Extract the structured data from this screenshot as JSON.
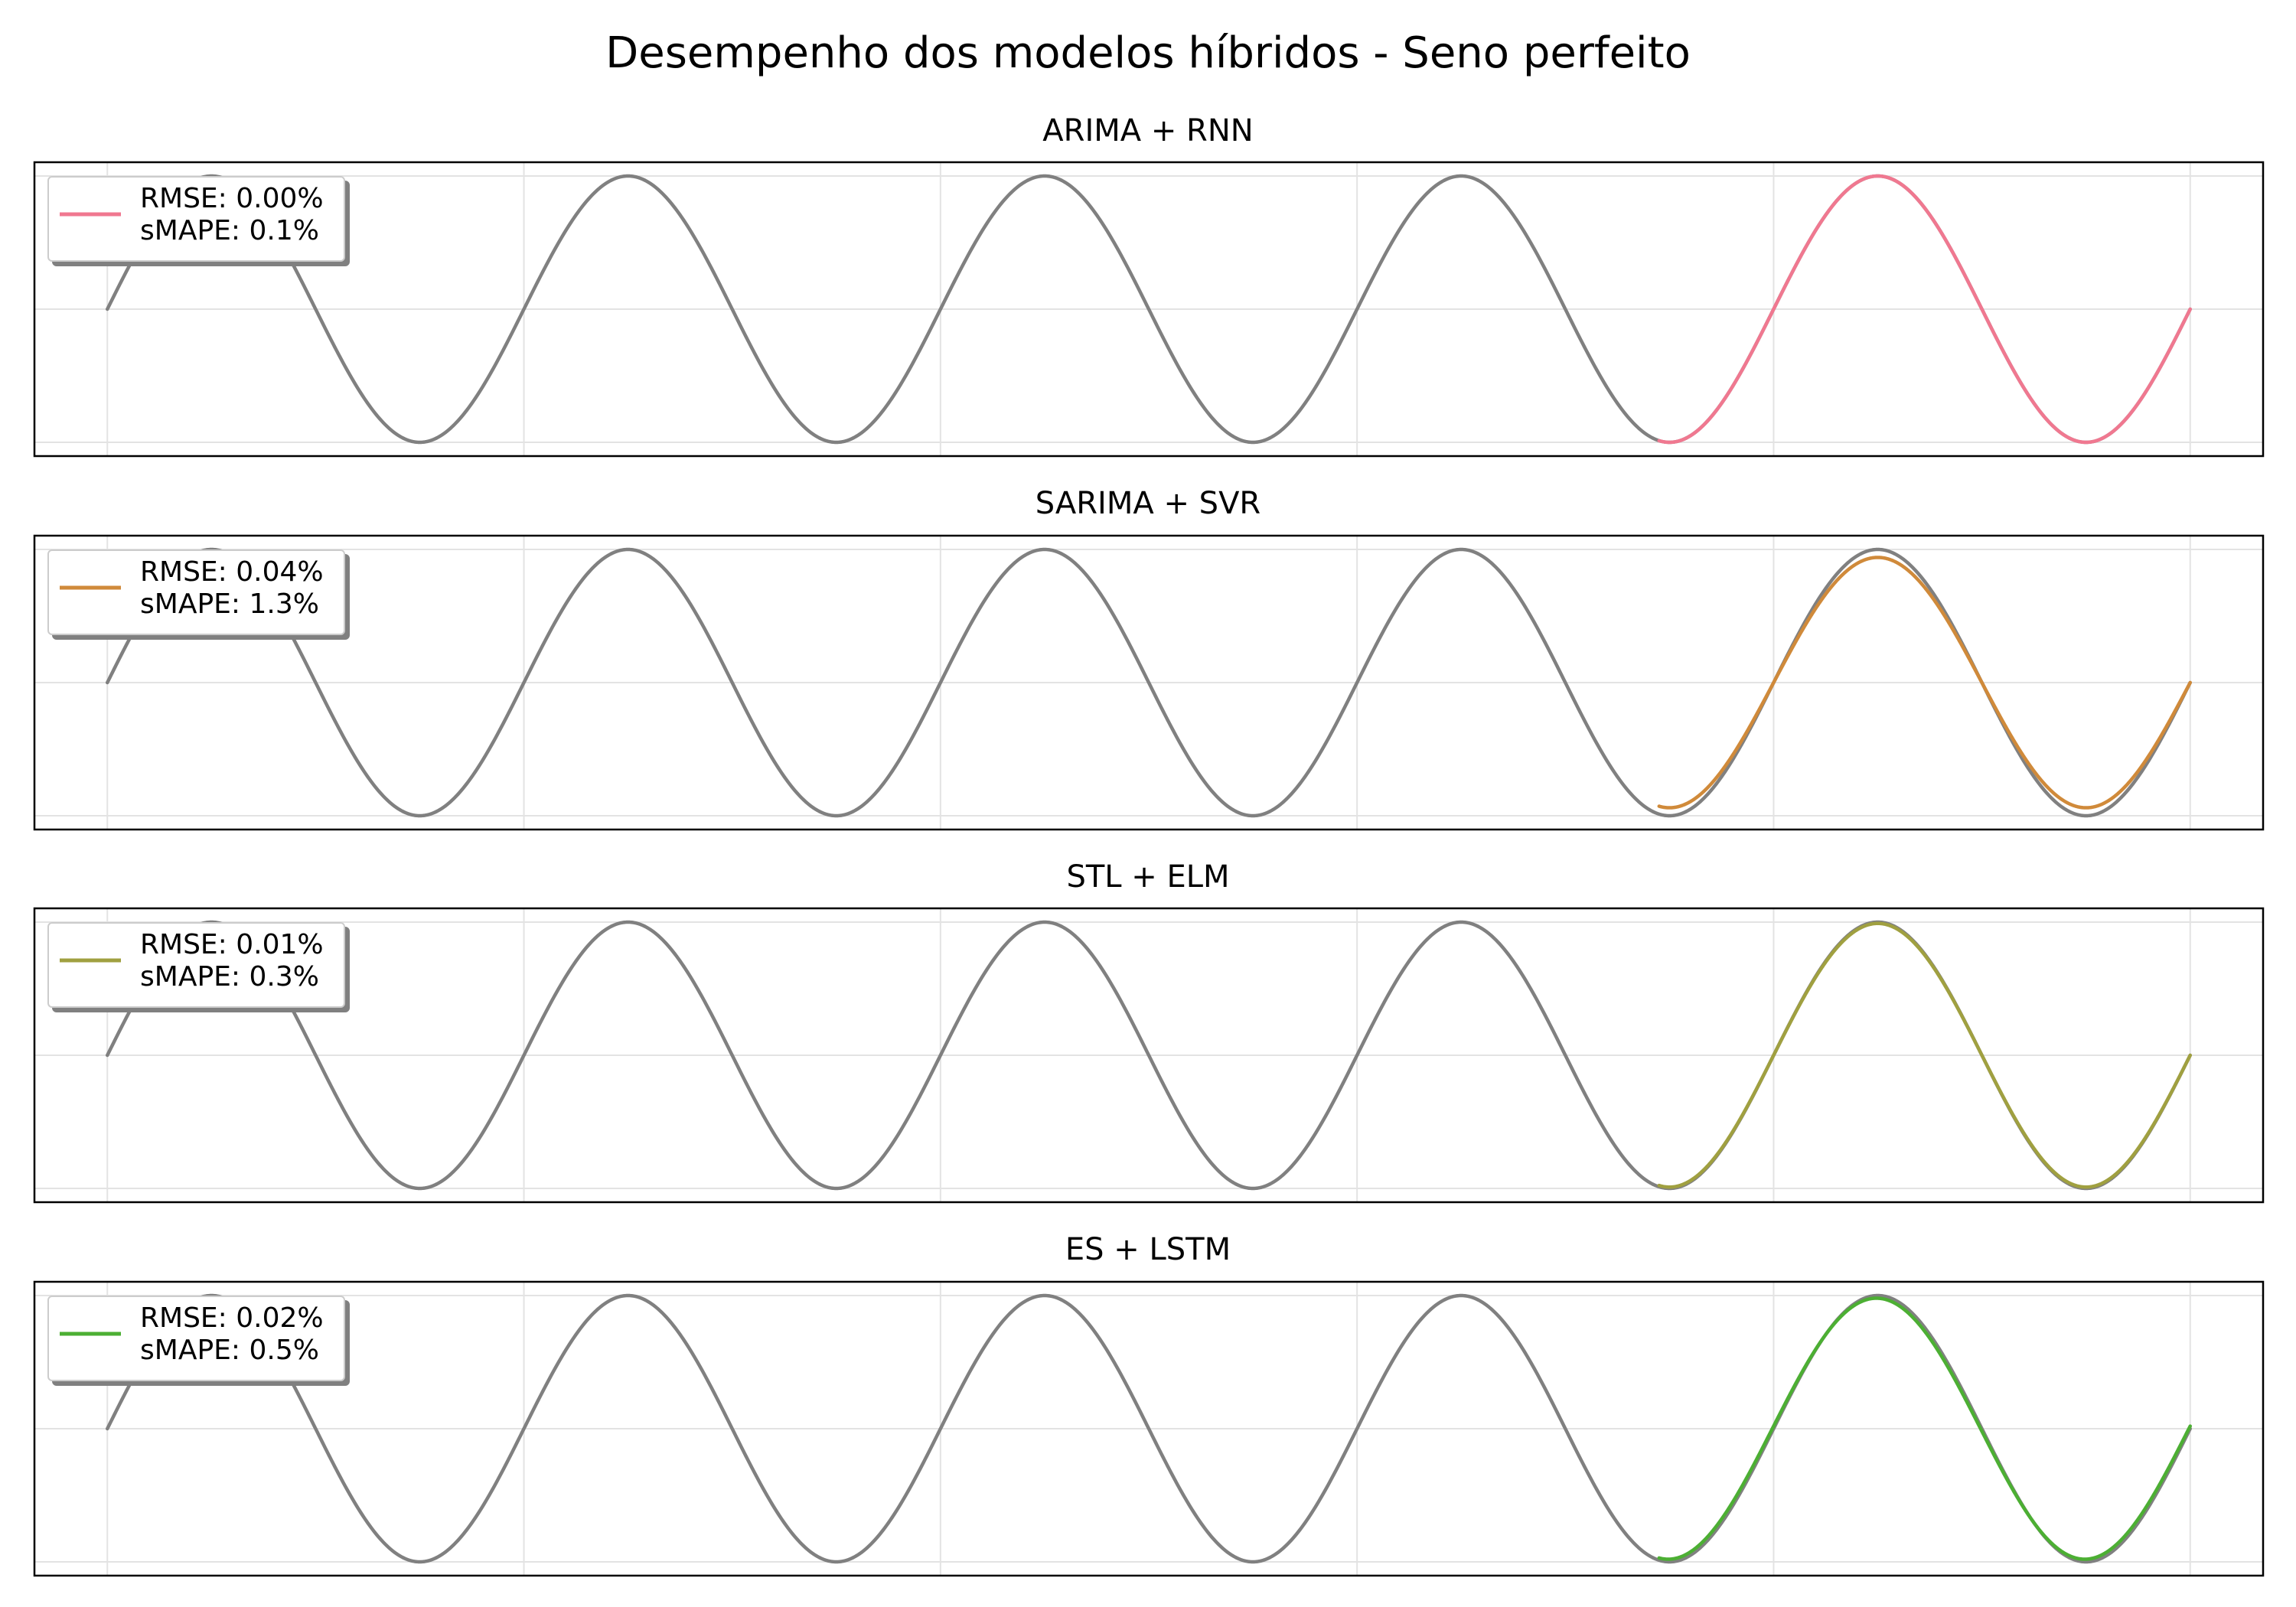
{
  "title": "Desempenho dos modelos híbridos - Seno perfeito",
  "chart_data": [
    {
      "type": "line",
      "title": "ARIMA + RNN",
      "xlabel": "",
      "ylabel": "",
      "grid": true,
      "legend": {
        "placement": "top-left",
        "lines": [
          "RMSE: 0.00%",
          "sMAPE: 0.1%"
        ]
      },
      "series": [
        {
          "role": "actual",
          "color": "#808080",
          "x_start": 0,
          "x_end": 100,
          "period": 20,
          "amplitude": 1,
          "phase": 0
        },
        {
          "role": "forecast",
          "color": "#f07890",
          "x_start": 74.5,
          "x_end": 100,
          "period": 20,
          "amplitude": 1.0,
          "phase": 0
        }
      ],
      "metrics": {
        "RMSE": "0.00%",
        "sMAPE": "0.1%"
      }
    },
    {
      "type": "line",
      "title": "SARIMA + SVR",
      "xlabel": "",
      "ylabel": "",
      "grid": true,
      "legend": {
        "placement": "top-left",
        "lines": [
          "RMSE: 0.04%",
          "sMAPE: 1.3%"
        ]
      },
      "series": [
        {
          "role": "actual",
          "color": "#808080",
          "x_start": 0,
          "x_end": 100,
          "period": 20,
          "amplitude": 1,
          "phase": 0
        },
        {
          "role": "forecast",
          "color": "#d08a3a",
          "x_start": 74.5,
          "x_end": 100,
          "period": 20,
          "amplitude": 0.94,
          "phase": 0
        }
      ],
      "metrics": {
        "RMSE": "0.04%",
        "sMAPE": "1.3%"
      }
    },
    {
      "type": "line",
      "title": "STL + ELM",
      "xlabel": "",
      "ylabel": "",
      "grid": true,
      "legend": {
        "placement": "top-left",
        "lines": [
          "RMSE: 0.01%",
          "sMAPE: 0.3%"
        ]
      },
      "series": [
        {
          "role": "actual",
          "color": "#808080",
          "x_start": 0,
          "x_end": 100,
          "period": 20,
          "amplitude": 1,
          "phase": 0
        },
        {
          "role": "forecast",
          "color": "#a0a040",
          "x_start": 74.5,
          "x_end": 100,
          "period": 20,
          "amplitude": 0.99,
          "phase": 0
        }
      ],
      "metrics": {
        "RMSE": "0.01%",
        "sMAPE": "0.3%"
      }
    },
    {
      "type": "line",
      "title": "ES + LSTM",
      "xlabel": "",
      "ylabel": "",
      "grid": true,
      "legend": {
        "placement": "top-left",
        "lines": [
          "RMSE: 0.02%",
          "sMAPE: 0.5%"
        ]
      },
      "series": [
        {
          "role": "actual",
          "color": "#808080",
          "x_start": 0,
          "x_end": 100,
          "period": 20,
          "amplitude": 1,
          "phase": 0
        },
        {
          "role": "forecast",
          "color": "#4caf33",
          "x_start": 74.5,
          "x_end": 100,
          "period": 20,
          "amplitude": 0.98,
          "phase": 0.02
        }
      ],
      "metrics": {
        "RMSE": "0.02%",
        "sMAPE": "0.5%"
      }
    }
  ]
}
